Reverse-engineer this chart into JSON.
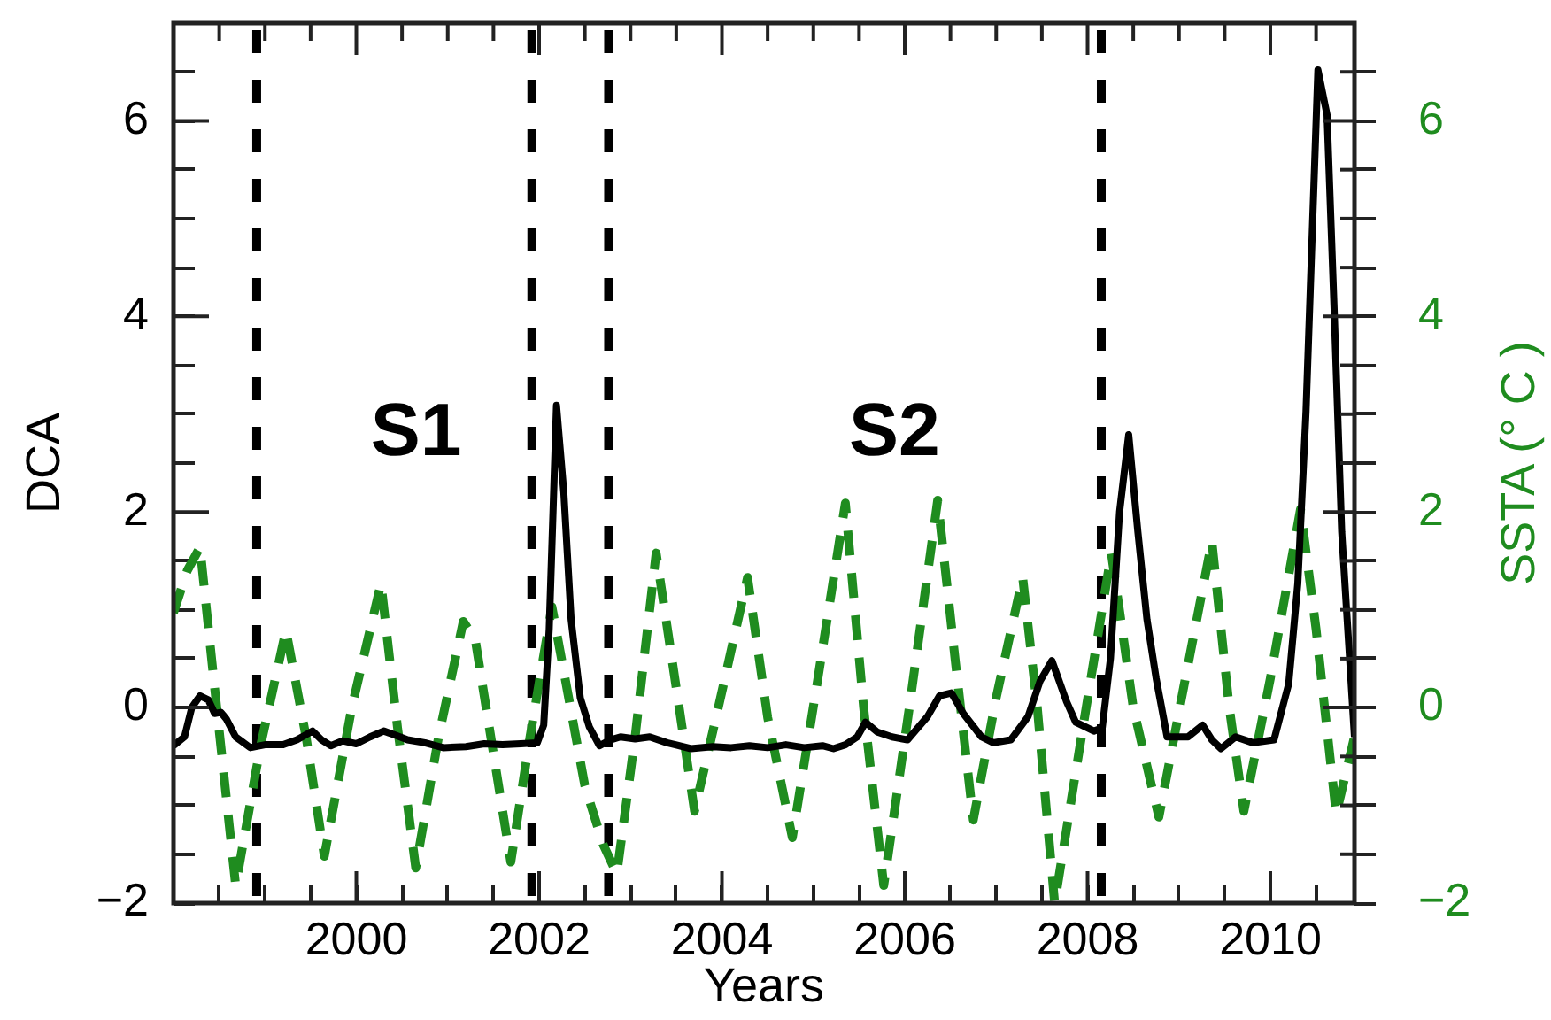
{
  "chart_data": {
    "type": "line",
    "xlabel": "Years",
    "ylabel": "DCA",
    "y2label": "SSTA (° C )",
    "annotations": [
      "S1",
      "S2"
    ],
    "series": [
      {
        "color": "#000000",
        "line_style": "solid",
        "x": [
          1998.0,
          1998.12,
          1998.2,
          1998.29,
          1998.38,
          1998.45,
          1998.52,
          1998.58,
          1998.68,
          1998.84,
          1999.0,
          1999.2,
          1999.35,
          1999.52,
          1999.62,
          1999.72,
          1999.85,
          2000.0,
          2000.15,
          2000.3,
          2000.42,
          2000.56,
          2000.75,
          2000.95,
          2001.2,
          2001.4,
          2001.6,
          2001.8,
          2001.98,
          2002.05,
          2002.11,
          2002.19,
          2002.27,
          2002.35,
          2002.45,
          2002.55,
          2002.66,
          2002.78,
          2002.89,
          2003.05,
          2003.21,
          2003.4,
          2003.66,
          2003.9,
          2004.1,
          2004.3,
          2004.5,
          2004.7,
          2004.9,
          2005.1,
          2005.22,
          2005.35,
          2005.48,
          2005.57,
          2005.7,
          2005.86,
          2006.03,
          2006.15,
          2006.25,
          2006.38,
          2006.51,
          2006.64,
          2006.84,
          2006.97,
          2007.16,
          2007.35,
          2007.48,
          2007.61,
          2007.77,
          2007.87,
          2008.07,
          2008.16,
          2008.25,
          2008.35,
          2008.45,
          2008.55,
          2008.65,
          2008.75,
          2008.87,
          2009.1,
          2009.26,
          2009.36,
          2009.46,
          2009.62,
          2009.81,
          2010.04,
          2010.2,
          2010.3,
          2010.39,
          2010.52,
          2010.62,
          2010.7,
          2010.78,
          2010.92
        ],
        "values": [
          -0.39,
          -0.3,
          0.0,
          0.12,
          0.08,
          -0.06,
          -0.05,
          -0.12,
          -0.3,
          -0.41,
          -0.38,
          -0.38,
          -0.33,
          -0.24,
          -0.33,
          -0.39,
          -0.34,
          -0.37,
          -0.3,
          -0.24,
          -0.28,
          -0.33,
          -0.36,
          -0.41,
          -0.4,
          -0.37,
          -0.38,
          -0.37,
          -0.36,
          -0.18,
          0.8,
          3.09,
          2.2,
          0.9,
          0.1,
          -0.2,
          -0.39,
          -0.33,
          -0.3,
          -0.32,
          -0.3,
          -0.36,
          -0.42,
          -0.4,
          -0.41,
          -0.39,
          -0.41,
          -0.38,
          -0.41,
          -0.39,
          -0.42,
          -0.38,
          -0.3,
          -0.15,
          -0.25,
          -0.3,
          -0.33,
          -0.2,
          -0.09,
          0.12,
          0.15,
          -0.06,
          -0.3,
          -0.36,
          -0.33,
          -0.09,
          0.27,
          0.48,
          0.06,
          -0.15,
          -0.24,
          -0.21,
          0.5,
          2.0,
          2.79,
          1.8,
          0.9,
          0.3,
          -0.3,
          -0.3,
          -0.18,
          -0.33,
          -0.42,
          -0.3,
          -0.36,
          -0.33,
          0.24,
          1.27,
          3.03,
          6.52,
          6.06,
          4.0,
          1.8,
          -0.3
        ]
      },
      {
        "color": "#1f8c1f",
        "line_style": "dashed",
        "axis": "y2",
        "x": [
          1998.0,
          1998.15,
          1998.29,
          1998.45,
          1998.68,
          1998.95,
          1999.23,
          1999.45,
          1999.65,
          1999.95,
          2000.27,
          2000.45,
          2000.65,
          2000.9,
          2001.17,
          2001.3,
          2001.69,
          2001.9,
          2002.14,
          2002.5,
          2002.7,
          2002.85,
          2003.05,
          2003.28,
          2003.5,
          2003.7,
          2003.96,
          2004.28,
          2004.5,
          2004.77,
          2005.05,
          2005.35,
          2005.55,
          2005.77,
          2006.05,
          2006.36,
          2006.55,
          2006.75,
          2007.0,
          2007.29,
          2007.45,
          2007.64,
          2007.95,
          2008.26,
          2008.5,
          2008.78,
          2009.05,
          2009.36,
          2009.55,
          2009.71,
          2010.0,
          2010.33,
          2010.5,
          2010.72,
          2010.92
        ],
        "values": [
          0.97,
          1.4,
          1.64,
          0.2,
          -1.82,
          -0.4,
          0.79,
          -0.3,
          -1.52,
          0.0,
          1.27,
          -0.2,
          -1.64,
          -0.3,
          0.88,
          0.7,
          -1.58,
          -0.3,
          1.03,
          -0.8,
          -1.4,
          -1.7,
          -0.3,
          1.58,
          0.2,
          -1.06,
          0.0,
          1.33,
          -0.1,
          -1.33,
          0.3,
          2.09,
          0.0,
          -1.82,
          0.0,
          2.12,
          0.5,
          -1.15,
          0.1,
          1.33,
          0.0,
          -2.0,
          -0.2,
          1.58,
          0.0,
          -1.12,
          0.2,
          1.7,
          0.0,
          -1.06,
          0.3,
          2.03,
          0.8,
          -1.09,
          -0.3
        ]
      }
    ],
    "xlim": [
      1998,
      2010.92
    ],
    "xticks": [
      {
        "value": 1998.5,
        "label": null
      },
      {
        "value": 1999,
        "label": null
      },
      {
        "value": 1999.5,
        "label": null
      },
      2000,
      {
        "value": 2000.5,
        "label": null
      },
      {
        "value": 2001,
        "label": null
      },
      {
        "value": 2001.5,
        "label": null
      },
      2002,
      {
        "value": 2002.5,
        "label": null
      },
      {
        "value": 2003,
        "label": null
      },
      {
        "value": 2003.5,
        "label": null
      },
      2004,
      {
        "value": 2004.5,
        "label": null
      },
      {
        "value": 2005,
        "label": null
      },
      {
        "value": 2005.5,
        "label": null
      },
      2006,
      {
        "value": 2006.5,
        "label": null
      },
      {
        "value": 2007,
        "label": null
      },
      {
        "value": 2007.5,
        "label": null
      },
      2008,
      {
        "value": 2008.5,
        "label": null
      },
      {
        "value": 2009,
        "label": null
      },
      {
        "value": 2009.5,
        "label": null
      },
      2010,
      {
        "value": 2010.5,
        "label": null
      }
    ],
    "ylim": [
      -2,
      7
    ],
    "yticks": [
      -2,
      {
        "value": -1.5,
        "label": null
      },
      {
        "value": -1,
        "label": null
      },
      {
        "value": -0.5,
        "label": null
      },
      0,
      {
        "value": 0.5,
        "label": null
      },
      {
        "value": 1,
        "label": null
      },
      {
        "value": 1.5,
        "label": null
      },
      2,
      {
        "value": 2.5,
        "label": null
      },
      {
        "value": 3,
        "label": null
      },
      {
        "value": 3.5,
        "label": null
      },
      4,
      {
        "value": 4.5,
        "label": null
      },
      {
        "value": 5,
        "label": null
      },
      {
        "value": 5.5,
        "label": null
      },
      6,
      {
        "value": 6.5,
        "label": null
      }
    ],
    "y2lim": [
      -2,
      7
    ],
    "y2ticks": [
      -2,
      {
        "value": -1.5,
        "label": null
      },
      {
        "value": -1,
        "label": null
      },
      {
        "value": -0.5,
        "label": null
      },
      0,
      {
        "value": 0.5,
        "label": null
      },
      {
        "value": 1,
        "label": null
      },
      {
        "value": 1.5,
        "label": null
      },
      2,
      {
        "value": 2.5,
        "label": null
      },
      {
        "value": 3,
        "label": null
      },
      {
        "value": 3.5,
        "label": null
      },
      4,
      {
        "value": 4.5,
        "label": null
      },
      {
        "value": 5,
        "label": null
      },
      {
        "value": 5.5,
        "label": null
      },
      6,
      {
        "value": 6.5,
        "label": null
      }
    ],
    "ref_lines": [
      {
        "axis": "x",
        "value": 1998.91,
        "color": "#000000",
        "line_style": "dashed"
      },
      {
        "axis": "x",
        "value": 2001.92,
        "color": "#000000",
        "line_style": "dashed"
      },
      {
        "axis": "x",
        "value": 2002.76,
        "color": "#000000",
        "line_style": "dashed"
      },
      {
        "axis": "x",
        "value": 2008.15,
        "color": "#000000",
        "line_style": "dashed"
      }
    ]
  }
}
